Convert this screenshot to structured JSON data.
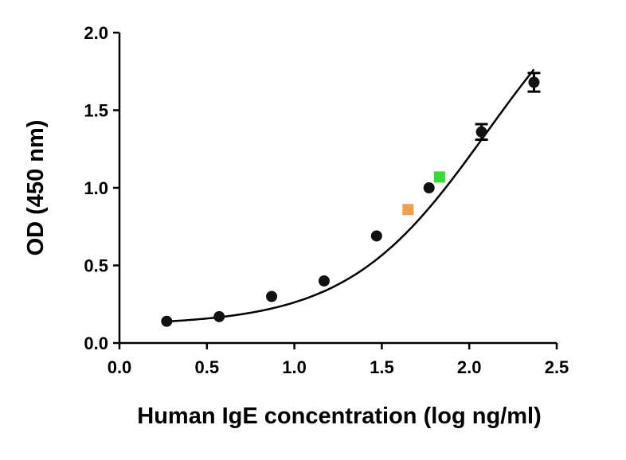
{
  "chart_data": {
    "type": "scatter",
    "xlabel": "Human IgE concentration (log ng/ml)",
    "ylabel": "OD (450 nm)",
    "xlim": [
      0.0,
      2.5
    ],
    "ylim": [
      0.0,
      2.0
    ],
    "x_ticks": [
      "0.0",
      "0.5",
      "1.0",
      "1.5",
      "2.0",
      "2.5"
    ],
    "y_ticks": [
      "0.0",
      "0.5",
      "1.0",
      "1.5",
      "2.0"
    ],
    "grid": false,
    "legend": "none",
    "series": [
      {
        "color": "#111111",
        "marker": "circle",
        "points": [
          {
            "x": 0.27,
            "y": 0.14,
            "err": 0
          },
          {
            "x": 0.57,
            "y": 0.17,
            "err": 0
          },
          {
            "x": 0.87,
            "y": 0.3,
            "err": 0
          },
          {
            "x": 1.17,
            "y": 0.4,
            "err": 0
          },
          {
            "x": 1.47,
            "y": 0.69,
            "err": 0
          },
          {
            "x": 1.77,
            "y": 1.0,
            "err": 0
          },
          {
            "x": 2.07,
            "y": 1.36,
            "err": 0.05
          },
          {
            "x": 2.37,
            "y": 1.68,
            "err": 0.06
          }
        ]
      },
      {
        "color": "#f0a04b",
        "marker": "square",
        "points": [
          {
            "x": 1.65,
            "y": 0.86,
            "err": 0
          }
        ]
      },
      {
        "color": "#33dd33",
        "marker": "square",
        "points": [
          {
            "x": 1.83,
            "y": 1.07,
            "err": 0
          }
        ]
      }
    ],
    "fit_curve": {
      "type": "4PL",
      "bottom": 0.114,
      "top": 2.6,
      "ec50_log": 2.1,
      "hill": 1.09,
      "x_range": [
        0.27,
        2.37
      ],
      "color": "#000000"
    }
  }
}
